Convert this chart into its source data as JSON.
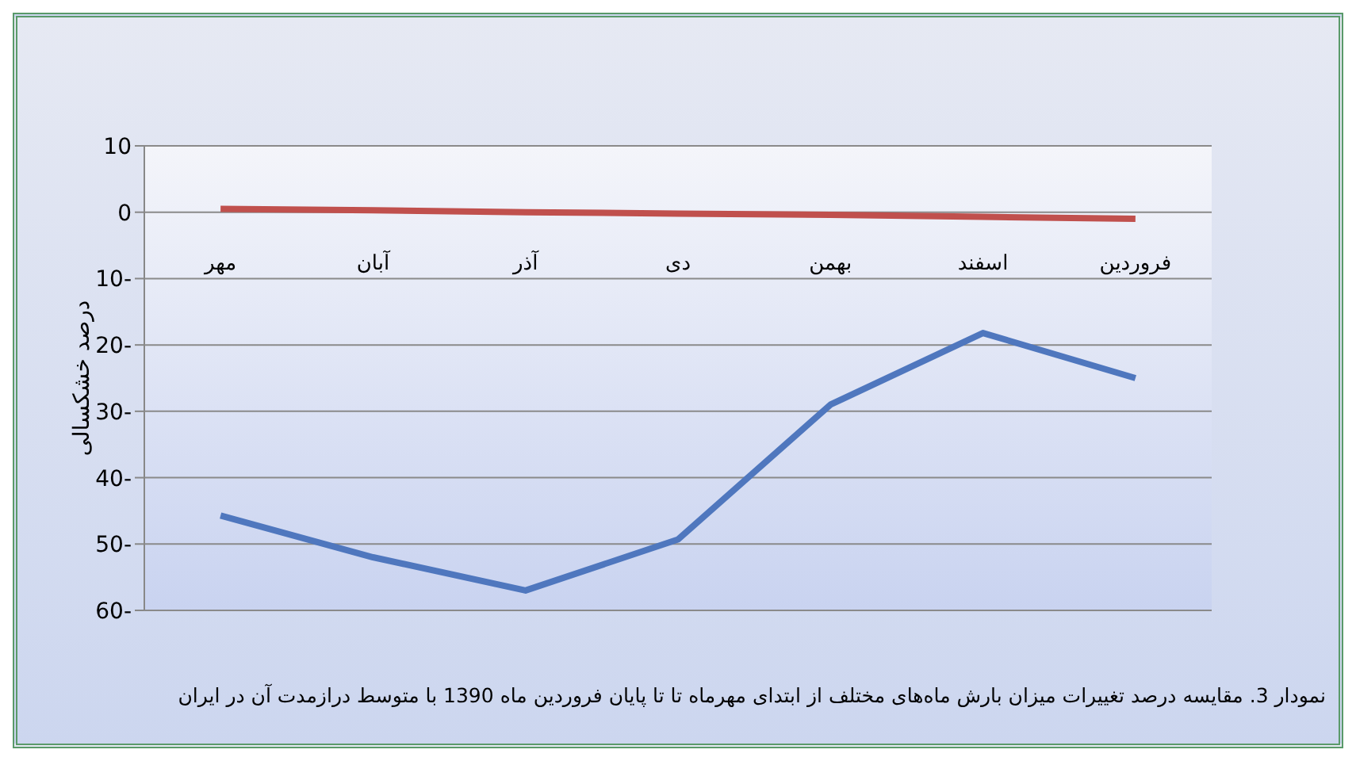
{
  "chart_data": {
    "type": "line",
    "ylabel": "درصد خشکسالی",
    "categories": [
      "مهر",
      "آبان",
      "آذر",
      "دی",
      "بهمن",
      "اسفند",
      "فروردین"
    ],
    "series": [
      {
        "color": "#4f77be",
        "values": [
          -45.7,
          -52,
          -57,
          -49.3,
          -29,
          -18.2,
          -25
        ]
      },
      {
        "color": "#c0504d",
        "values": [
          0.5,
          0.3,
          0,
          -0.2,
          -0.4,
          -0.7,
          -1
        ]
      }
    ],
    "ylim": [
      -60,
      10
    ],
    "yticks": [
      10,
      0,
      {
        "value": -10,
        "label": "10-"
      },
      {
        "value": -20,
        "label": "20-"
      },
      {
        "value": -30,
        "label": "30-"
      },
      {
        "value": -40,
        "label": "40-"
      },
      {
        "value": -50,
        "label": "50-"
      },
      {
        "value": -60,
        "label": "60-"
      }
    ],
    "grid": "y",
    "legend": false,
    "marker": "none",
    "line_style": "solid",
    "annotations": [
      "نمودار 3. مقایسه درصد تغییرات میزان بارش ماه‌های مختلف از ابتدای مهرماه تا تا پایان فروردین ماه 1390 با متوسط درازمدت آن در ایران"
    ]
  }
}
